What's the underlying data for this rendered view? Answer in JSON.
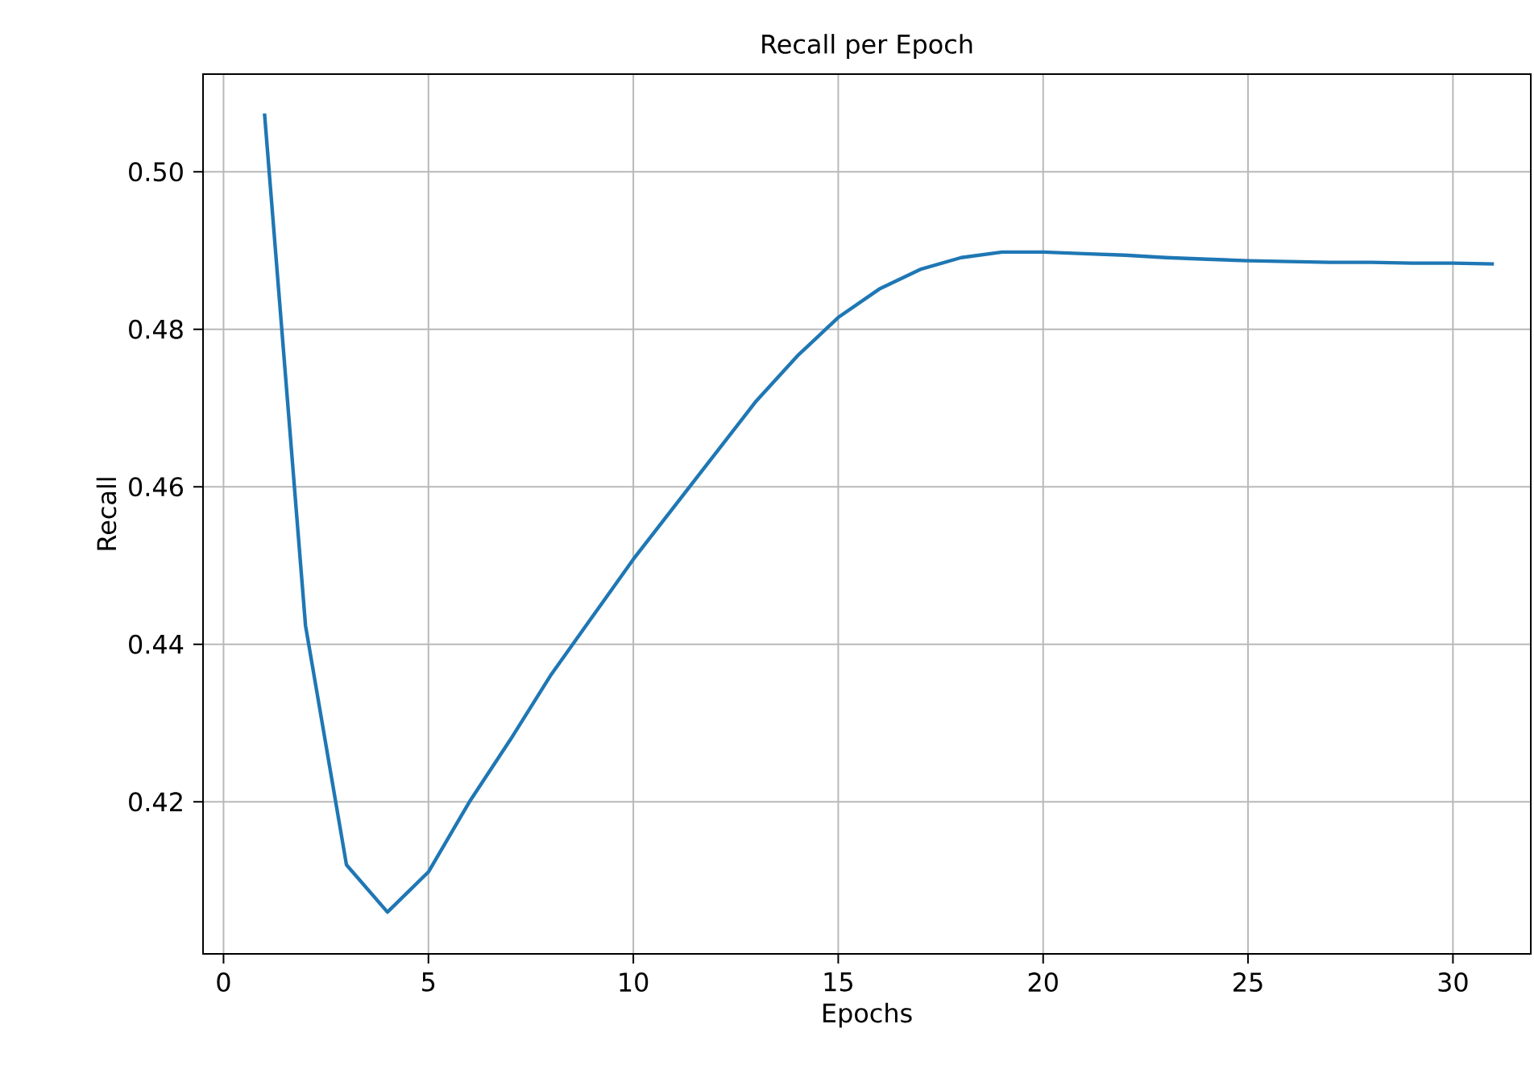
{
  "chart_data": {
    "type": "line",
    "title": "Recall per Epoch",
    "xlabel": "Epochs",
    "ylabel": "Recall",
    "x": [
      1,
      2,
      3,
      4,
      5,
      6,
      7,
      8,
      9,
      10,
      11,
      12,
      13,
      14,
      15,
      16,
      17,
      18,
      19,
      20,
      21,
      22,
      23,
      24,
      25,
      26,
      27,
      28,
      29,
      30,
      31
    ],
    "series": [
      {
        "color": "#1f77b4",
        "values": [
          0.5074,
          0.4424,
          0.412,
          0.406,
          0.4111,
          0.42,
          0.4279,
          0.4362,
          0.4435,
          0.4508,
          0.4575,
          0.4642,
          0.4709,
          0.4766,
          0.4815,
          0.4851,
          0.4876,
          0.4891,
          0.4898,
          0.4898,
          0.4896,
          0.4894,
          0.4891,
          0.4889,
          0.4887,
          0.4886,
          0.4885,
          0.4885,
          0.4884,
          0.4884,
          0.4883
        ]
      }
    ],
    "xlim": [
      -0.5,
      31.9
    ],
    "ylim": [
      0.4007,
      0.5124
    ],
    "xticks": [
      0,
      5,
      10,
      15,
      20,
      25,
      30
    ],
    "yticks": [
      {
        "value": 0.42,
        "label": "0.42"
      },
      {
        "value": 0.44,
        "label": "0.44"
      },
      {
        "value": 0.46,
        "label": "0.46"
      },
      {
        "value": 0.48,
        "label": "0.48"
      },
      {
        "value": 0.5,
        "label": "0.50"
      }
    ],
    "grid": true,
    "line_style": "solid",
    "marker": "none"
  }
}
